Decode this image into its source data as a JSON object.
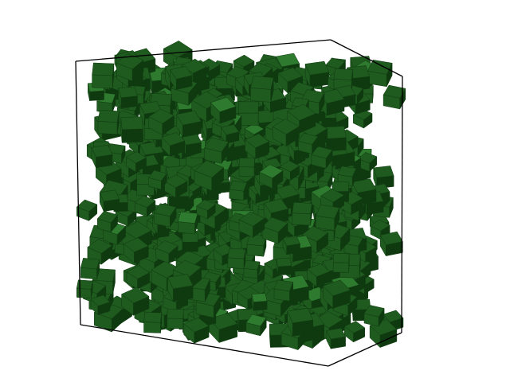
{
  "scene": {
    "subject": "random-packing-of-cubes",
    "cube_color": "#1f5a1f",
    "cube_color_dark": "#0f3a10",
    "cube_color_light": "#2e7a2e",
    "frame_color": "#000000",
    "background": "#ffffff",
    "cube_count": 620,
    "seed": 7
  }
}
